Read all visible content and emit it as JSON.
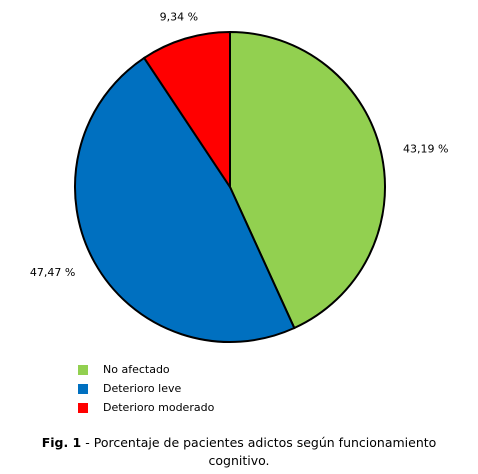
{
  "chart_data": {
    "type": "pie",
    "categories": [
      "No afectado",
      "Deterioro leve",
      "Deterioro moderado"
    ],
    "values": [
      43.19,
      47.47,
      9.34
    ],
    "value_labels": [
      "43,19 %",
      "47,47 %",
      "9,34 %"
    ],
    "colors": [
      "#92d050",
      "#0070c0",
      "#ff0000"
    ],
    "legend": "bottom-left",
    "figure_label": "Fig. 1",
    "caption": "- Porcentaje de pacientes adictos según funcionamiento cognitivo."
  }
}
